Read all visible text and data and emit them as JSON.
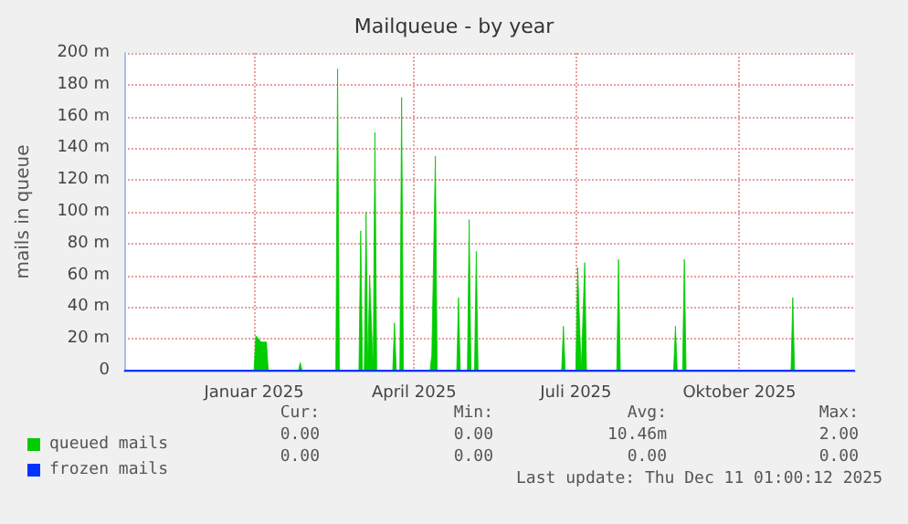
{
  "chart_data": {
    "type": "area",
    "title": "Mailqueue - by year",
    "ylabel": "mails in queue",
    "xlim": [
      "2024-10-20",
      "2025-12-05"
    ],
    "xticks": [
      {
        "value": "2025-01-01",
        "label": "Januar 2025"
      },
      {
        "value": "2025-04-01",
        "label": "April 2025"
      },
      {
        "value": "2025-07-01",
        "label": "Juli 2025"
      },
      {
        "value": "2025-10-01",
        "label": "Oktober 2025"
      }
    ],
    "ylim": [
      0,
      200
    ],
    "yticks": [
      0,
      {
        "value": 20,
        "label": "20 m"
      },
      {
        "value": 40,
        "label": "40 m"
      },
      {
        "value": 60,
        "label": "60 m"
      },
      {
        "value": 80,
        "label": "80 m"
      },
      {
        "value": 100,
        "label": "100 m"
      },
      {
        "value": 120,
        "label": "120 m"
      },
      {
        "value": 140,
        "label": "140 m"
      },
      {
        "value": 160,
        "label": "160 m"
      },
      {
        "value": 180,
        "label": "180 m"
      },
      {
        "value": 200,
        "label": "200 m"
      }
    ],
    "grid": true,
    "legend": "bottom",
    "series": [
      {
        "name": "queued mails",
        "color": "#00cc00",
        "x": [
          "2024-10-20",
          "2025-01-01",
          "2025-01-02",
          "2025-01-05",
          "2025-01-08",
          "2025-01-09",
          "2025-01-26",
          "2025-01-27",
          "2025-01-28",
          "2025-02-16",
          "2025-02-17",
          "2025-02-18",
          "2025-03-01",
          "2025-03-02",
          "2025-03-03",
          "2025-03-04",
          "2025-03-05",
          "2025-03-06",
          "2025-03-07",
          "2025-03-09",
          "2025-03-10",
          "2025-03-11",
          "2025-03-20",
          "2025-03-21",
          "2025-03-22",
          "2025-03-24",
          "2025-03-25",
          "2025-03-26",
          "2025-04-10",
          "2025-04-11",
          "2025-04-13",
          "2025-04-14",
          "2025-04-25",
          "2025-04-26",
          "2025-04-27",
          "2025-05-01",
          "2025-05-02",
          "2025-05-03",
          "2025-05-05",
          "2025-05-06",
          "2025-05-07",
          "2025-06-23",
          "2025-06-24",
          "2025-06-25",
          "2025-07-01",
          "2025-07-02",
          "2025-07-04",
          "2025-07-06",
          "2025-07-07",
          "2025-07-24",
          "2025-07-25",
          "2025-07-26",
          "2025-08-25",
          "2025-08-26",
          "2025-08-27",
          "2025-08-30",
          "2025-08-31",
          "2025-09-01",
          "2025-10-30",
          "2025-10-31",
          "2025-11-01",
          "2025-12-05"
        ],
        "values": [
          0,
          0,
          22,
          18,
          18,
          0,
          0,
          5,
          0,
          0,
          190,
          0,
          0,
          88,
          0,
          0,
          100,
          0,
          60,
          0,
          150,
          0,
          0,
          30,
          0,
          0,
          172,
          0,
          0,
          10,
          135,
          0,
          0,
          46,
          0,
          0,
          95,
          0,
          0,
          75,
          0,
          0,
          28,
          0,
          0,
          65,
          0,
          68,
          0,
          0,
          70,
          0,
          0,
          28,
          0,
          0,
          70,
          0,
          0,
          46,
          0,
          0
        ]
      },
      {
        "name": "frozen mails",
        "color": "#0033ff",
        "type": "line",
        "x": [
          "2024-10-20",
          "2025-12-05"
        ],
        "values": [
          0,
          0
        ]
      }
    ],
    "annotations": [
      "Cur:",
      "Min:",
      "Avg:",
      "Max:",
      "0.00",
      "0.00",
      "10.46m",
      "2.00",
      "0.00",
      "0.00",
      "0.00",
      "0.00",
      "Last update: Thu Dec 11 01:00:12 2025"
    ]
  }
}
